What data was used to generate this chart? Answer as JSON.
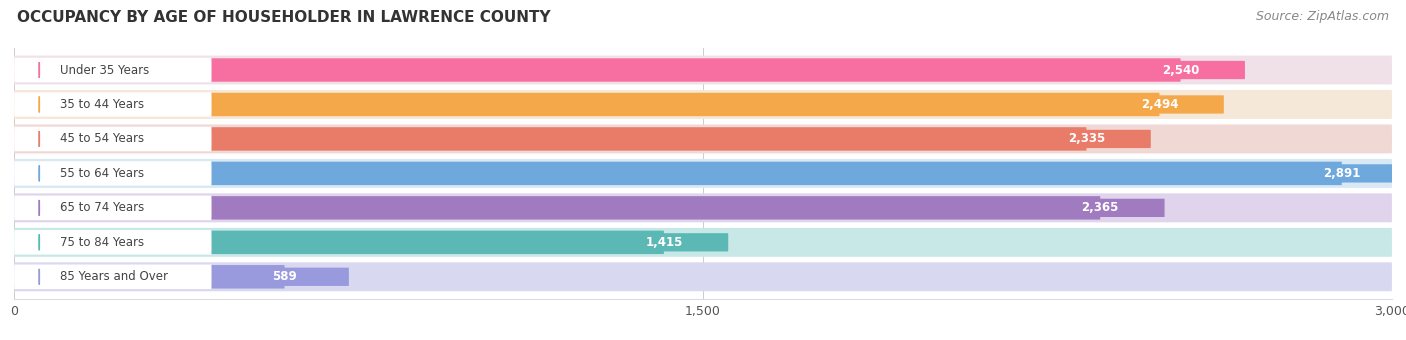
{
  "title": "OCCUPANCY BY AGE OF HOUSEHOLDER IN LAWRENCE COUNTY",
  "source": "Source: ZipAtlas.com",
  "categories": [
    "Under 35 Years",
    "35 to 44 Years",
    "45 to 54 Years",
    "55 to 64 Years",
    "65 to 74 Years",
    "75 to 84 Years",
    "85 Years and Over"
  ],
  "values": [
    2540,
    2494,
    2335,
    2891,
    2365,
    1415,
    589
  ],
  "bar_colors": [
    "#F76FA0",
    "#F5A84A",
    "#E87C68",
    "#6FA8DC",
    "#A07BC0",
    "#5BB8B4",
    "#9999DD"
  ],
  "bar_bg_colors": [
    "#F0E0E8",
    "#F5E8D8",
    "#F0D8D4",
    "#D8E8F4",
    "#E0D4EC",
    "#C8E8E8",
    "#D8D8F0"
  ],
  "xlim": [
    0,
    3000
  ],
  "xticks": [
    0,
    1500,
    3000
  ],
  "xtick_labels": [
    "0",
    "1,500",
    "3,000"
  ],
  "title_fontsize": 11,
  "source_fontsize": 9,
  "background_color": "#ffffff"
}
